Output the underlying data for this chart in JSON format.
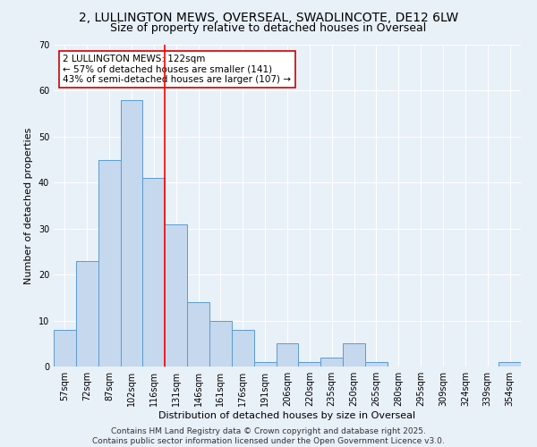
{
  "title": "2, LULLINGTON MEWS, OVERSEAL, SWADLINCOTE, DE12 6LW",
  "subtitle": "Size of property relative to detached houses in Overseal",
  "xlabel": "Distribution of detached houses by size in Overseal",
  "ylabel": "Number of detached properties",
  "categories": [
    "57sqm",
    "72sqm",
    "87sqm",
    "102sqm",
    "116sqm",
    "131sqm",
    "146sqm",
    "161sqm",
    "176sqm",
    "191sqm",
    "206sqm",
    "220sqm",
    "235sqm",
    "250sqm",
    "265sqm",
    "280sqm",
    "295sqm",
    "309sqm",
    "324sqm",
    "339sqm",
    "354sqm"
  ],
  "values": [
    8,
    23,
    45,
    58,
    41,
    31,
    14,
    10,
    8,
    1,
    5,
    1,
    2,
    5,
    1,
    0,
    0,
    0,
    0,
    0,
    1
  ],
  "bar_color": "#c5d8ed",
  "bar_edge_color": "#5b9bd5",
  "background_color": "#e8f0f8",
  "grid_color": "#ffffff",
  "red_line_x": 4.5,
  "annotation_text": "2 LULLINGTON MEWS: 122sqm\n← 57% of detached houses are smaller (141)\n43% of semi-detached houses are larger (107) →",
  "annotation_box_color": "#ffffff",
  "annotation_box_edge_color": "#cc0000",
  "ylim": [
    0,
    70
  ],
  "yticks": [
    0,
    10,
    20,
    30,
    40,
    50,
    60,
    70
  ],
  "footer": "Contains HM Land Registry data © Crown copyright and database right 2025.\nContains public sector information licensed under the Open Government Licence v3.0.",
  "title_fontsize": 10,
  "subtitle_fontsize": 9,
  "label_fontsize": 8,
  "tick_fontsize": 7,
  "annotation_fontsize": 7.5,
  "footer_fontsize": 6.5
}
